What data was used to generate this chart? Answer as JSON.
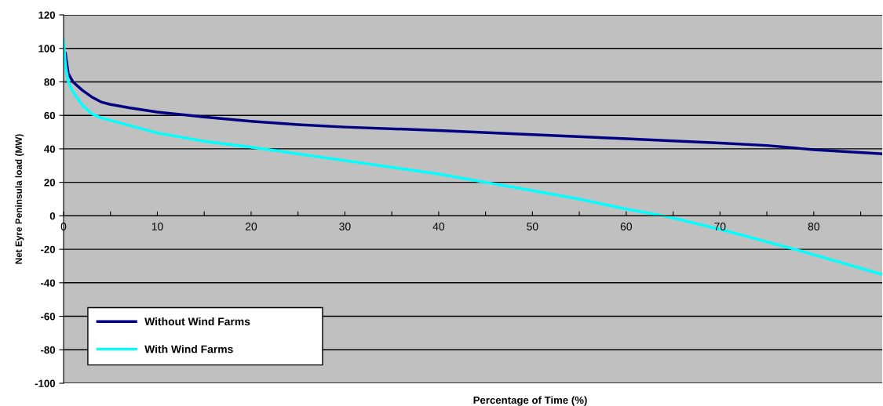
{
  "chart_data": {
    "type": "line",
    "xlabel": "Percentage of Time (%)",
    "ylabel": "Net Eyre Peninsula load (MW)",
    "xlim": [
      0,
      87.3
    ],
    "xticks": [
      0,
      {
        "value": 5,
        "label": null
      },
      10,
      {
        "value": 15,
        "label": null
      },
      20,
      {
        "value": 25,
        "label": null
      },
      30,
      {
        "value": 35,
        "label": null
      },
      40,
      {
        "value": 45,
        "label": null
      },
      50,
      {
        "value": 55,
        "label": null
      },
      60,
      {
        "value": 65,
        "label": null
      },
      70,
      {
        "value": 75,
        "label": null
      },
      80,
      {
        "value": 85,
        "label": null
      }
    ],
    "ylim": [
      -100,
      120
    ],
    "yticks": [
      -100,
      -80,
      -60,
      -40,
      -20,
      0,
      20,
      40,
      60,
      80,
      100,
      120
    ],
    "grid": "y",
    "legend": "bottom left",
    "marker": "none",
    "line_style": "solid",
    "series": [
      {
        "name": "Without Wind Farms",
        "color": "#000080",
        "x": [
          0.2,
          0.5,
          1,
          2,
          3,
          4,
          5,
          7,
          10,
          15,
          20,
          25,
          30,
          40,
          50,
          60,
          70,
          75,
          80,
          87.3
        ],
        "values": [
          97,
          85,
          80,
          75,
          71,
          68,
          66.5,
          64.5,
          62,
          59,
          56.5,
          54.5,
          53,
          51,
          48.5,
          46,
          43.5,
          42,
          39.5,
          37
        ]
      },
      {
        "name": "With Wind Farms",
        "color": "#00ffff",
        "x": [
          0,
          0.2,
          0.5,
          1,
          2,
          3,
          4,
          5,
          10,
          15,
          20,
          30,
          40,
          45,
          50,
          55,
          60,
          64,
          70,
          78,
          87.3
        ],
        "values": [
          105,
          90,
          80,
          74,
          66,
          61,
          58.5,
          57,
          49.5,
          44.5,
          41,
          33,
          25,
          20,
          15,
          10,
          4,
          0,
          -8,
          -20,
          -35
        ]
      }
    ]
  }
}
